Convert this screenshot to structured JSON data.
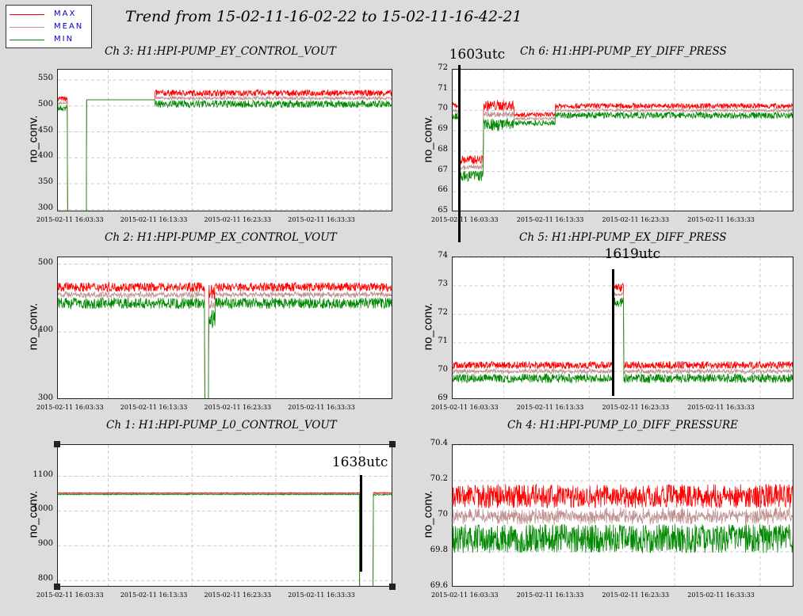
{
  "title": "Trend from 15-02-11-16-02-22 to 15-02-11-16-42-21",
  "legend": [
    {
      "label": "MAX",
      "color": "#ff0000"
    },
    {
      "label": "MEAN",
      "color": "#c09090"
    },
    {
      "label": "MIN",
      "color": "#008800"
    }
  ],
  "xticks": [
    "2015-02-11 16:03:33",
    "2015-02-11 16:13:33",
    "2015-02-11 16:23:33",
    "2015-02-11 16:33:33"
  ],
  "chart_data": [
    {
      "type": "line",
      "title": "Ch 3: H1:HPI-PUMP_EY_CONTROL_VOUT",
      "ylabel": "no_conv.",
      "ylim": [
        295,
        570
      ],
      "yticks": [
        300,
        350,
        400,
        450,
        500,
        550
      ],
      "segments": [
        {
          "x0": 0,
          "x1": 0.028,
          "v": 505,
          "a": 14
        },
        {
          "x0": 0.028,
          "x1": 0.03,
          "v": 300,
          "a": 0
        },
        {
          "x0": 0.03,
          "x1": 0.085,
          "v": 296,
          "a": 0
        },
        {
          "x0": 0.085,
          "x1": 0.29,
          "v": 512,
          "a": 0
        },
        {
          "x0": 0.29,
          "x1": 1,
          "v": 515,
          "a": 16
        }
      ],
      "annotations": []
    },
    {
      "type": "line",
      "title": "Ch 6: H1:HPI-PUMP_EY_DIFF_PRESS",
      "ylabel": "no_conv.",
      "ylim": [
        65,
        72
      ],
      "yticks": [
        65,
        66,
        67,
        68,
        69,
        70,
        71,
        72
      ],
      "segments": [
        {
          "x0": 0,
          "x1": 0.02,
          "v": 70.0,
          "a": 0.4
        },
        {
          "x0": 0.02,
          "x1": 0.09,
          "v": 67.2,
          "a": 0.6
        },
        {
          "x0": 0.09,
          "x1": 0.18,
          "v": 69.8,
          "a": 0.7
        },
        {
          "x0": 0.18,
          "x1": 0.3,
          "v": 69.6,
          "a": 0.3
        },
        {
          "x0": 0.3,
          "x1": 1,
          "v": 70.0,
          "a": 0.35
        }
      ],
      "annotations": [
        {
          "label": "1603utc",
          "x": 0.02
        }
      ]
    },
    {
      "type": "line",
      "title": "Ch 2: H1:HPI-PUMP_EX_CONTROL_VOUT",
      "ylabel": "no_conv.",
      "ylim": [
        300,
        510
      ],
      "yticks": [
        300,
        400,
        500
      ],
      "segments": [
        {
          "x0": 0,
          "x1": 0.438,
          "v": 455,
          "a": 18
        },
        {
          "x0": 0.438,
          "x1": 0.45,
          "v": 300,
          "a": 0
        },
        {
          "x0": 0.45,
          "x1": 0.47,
          "v": 440,
          "a": 30
        },
        {
          "x0": 0.47,
          "x1": 1,
          "v": 455,
          "a": 18
        }
      ],
      "annotations": []
    },
    {
      "type": "line",
      "title": "Ch 5: H1:HPI-PUMP_EX_DIFF_PRESS",
      "ylabel": "no_conv.",
      "ylim": [
        69,
        74
      ],
      "yticks": [
        69,
        70,
        71,
        72,
        73,
        74
      ],
      "segments": [
        {
          "x0": 0,
          "x1": 0.47,
          "v": 70.0,
          "a": 0.35
        },
        {
          "x0": 0.47,
          "x1": 0.5,
          "v": 72.7,
          "a": 0.4
        },
        {
          "x0": 0.5,
          "x1": 1,
          "v": 70.0,
          "a": 0.35
        }
      ],
      "annotations": [
        {
          "label": "1619utc",
          "x": 0.47
        }
      ]
    },
    {
      "type": "line",
      "title": "Ch 1: H1:HPI-PUMP_L0_CONTROL_VOUT",
      "ylabel": "no_conv.",
      "ylim": [
        780,
        1190
      ],
      "yticks": [
        800,
        900,
        1000,
        1100
      ],
      "segments": [
        {
          "x0": 0,
          "x1": 0.9,
          "v": 1050,
          "a": 3
        },
        {
          "x0": 0.9,
          "x1": 0.94,
          "v": 780,
          "a": 0
        },
        {
          "x0": 0.94,
          "x1": 1,
          "v": 1050,
          "a": 4
        }
      ],
      "annotations": [
        {
          "label": "1638utc",
          "x": 0.905
        }
      ]
    },
    {
      "type": "line",
      "title": "Ch 4: H1:HPI-PUMP_L0_DIFF_PRESSURE",
      "ylabel": "no_conv.",
      "ylim": [
        69.6,
        70.4
      ],
      "yticks": [
        69.6,
        69.8,
        70,
        70.2,
        70.4
      ],
      "segments": [
        {
          "x0": 0,
          "x1": 1,
          "v": 70.0,
          "a": 0.18
        }
      ],
      "annotations": []
    }
  ]
}
